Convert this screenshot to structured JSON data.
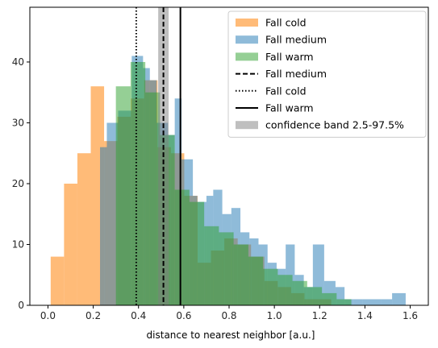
{
  "chart_data": {
    "type": "histogram",
    "xlabel": "distance to nearest neighbor [a.u.]",
    "ylabel": "",
    "xlim": [
      -0.08,
      1.68
    ],
    "ylim": [
      0,
      49
    ],
    "xticks": [
      0.0,
      0.2,
      0.4,
      0.6,
      0.8,
      1.0,
      1.2,
      1.4,
      1.6
    ],
    "xtick_labels": [
      "0.0",
      "0.2",
      "0.4",
      "0.6",
      "0.8",
      "1.0",
      "1.2",
      "1.4",
      "1.6"
    ],
    "yticks": [
      0,
      10,
      20,
      30,
      40
    ],
    "ytick_labels": [
      "0",
      "10",
      "20",
      "30",
      "40"
    ],
    "legend_position": "top-right",
    "series": [
      {
        "name": "Fall cold",
        "color": "#ffbb78",
        "alpha": 1.0,
        "bin_edges": [
          0.012,
          0.071,
          0.13,
          0.189,
          0.248,
          0.307,
          0.366,
          0.425,
          0.484,
          0.543,
          0.602,
          0.661,
          0.72,
          0.779,
          0.838,
          0.897,
          0.956,
          1.015,
          1.074,
          1.133,
          1.192,
          1.251
        ],
        "counts": [
          8,
          20,
          25,
          36,
          27,
          31,
          34,
          37,
          26,
          25,
          18,
          7,
          9,
          11,
          10,
          8,
          4,
          3,
          2,
          1,
          1
        ]
      },
      {
        "name": "Fall medium",
        "color": "#1f77b4",
        "alpha": 0.5,
        "bin_edges": [
          0.23,
          0.26,
          0.31,
          0.37,
          0.42,
          0.45,
          0.48,
          0.53,
          0.56,
          0.59,
          0.64,
          0.66,
          0.7,
          0.73,
          0.77,
          0.81,
          0.85,
          0.89,
          0.93,
          0.97,
          1.01,
          1.05,
          1.09,
          1.13,
          1.17,
          1.22,
          1.27,
          1.31,
          1.35,
          1.39,
          1.47,
          1.52,
          1.58
        ],
        "counts": [
          26,
          30,
          32,
          41,
          39,
          37,
          30,
          28,
          34,
          24,
          18,
          17,
          18,
          19,
          15,
          16,
          12,
          11,
          10,
          7,
          6,
          10,
          5,
          3,
          10,
          4,
          3,
          1,
          1,
          1,
          1,
          2
        ]
      },
      {
        "name": "Fall warm",
        "color": "#2ca02c",
        "alpha": 0.5,
        "bin_edges": [
          0.3,
          0.365,
          0.43,
          0.495,
          0.56,
          0.625,
          0.69,
          0.755,
          0.82,
          0.885,
          0.95,
          1.015,
          1.08,
          1.145,
          1.21,
          1.275,
          1.34
        ],
        "counts": [
          36,
          40,
          35,
          28,
          19,
          17,
          13,
          12,
          10,
          8,
          6,
          5,
          4,
          3,
          2,
          1
        ]
      }
    ],
    "vlines": [
      {
        "name": "Fall medium",
        "x": 0.51,
        "style": "dashed",
        "color": "#000000"
      },
      {
        "name": "Fall cold",
        "x": 0.39,
        "style": "dotted",
        "color": "#000000"
      },
      {
        "name": "Fall warm",
        "x": 0.585,
        "style": "solid",
        "color": "#000000"
      }
    ],
    "band": {
      "name": "confidence band 2.5-97.5%",
      "x0": 0.487,
      "x1": 0.533,
      "color": "#808080",
      "alpha": 0.5
    }
  }
}
